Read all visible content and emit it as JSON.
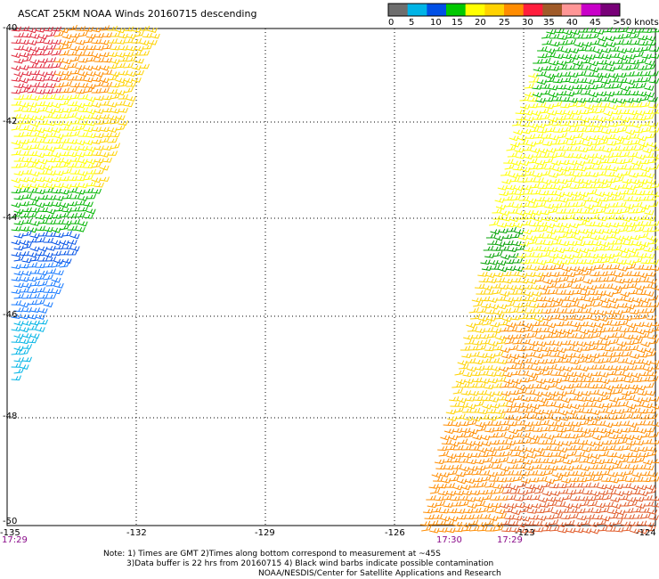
{
  "title": "ASCAT 25KM NOAA Winds 20160715 descending",
  "colorbar": {
    "ticks": [
      "0",
      "5",
      "10",
      "15",
      "20",
      "25",
      "30",
      "35",
      "40",
      "45",
      ">50 knots"
    ],
    "colors": [
      "#6e6e6e",
      "#00b4e6",
      "#0050e6",
      "#00c800",
      "#ffff00",
      "#ffd200",
      "#ff8c00",
      "#ff1e3c",
      "#a05a28",
      "#ff9696",
      "#c800c8",
      "#780078"
    ]
  },
  "axes": {
    "lon_labels": [
      "-135",
      "-132",
      "-129",
      "-126",
      "-123",
      "-124"
    ],
    "lat_labels": [
      "-40",
      "-42",
      "-44",
      "-46",
      "-48",
      "-50"
    ]
  },
  "times": [
    "17:29",
    "17:30",
    "17:29"
  ],
  "notes": [
    "Note: 1) Times are GMT 2)Times along bottom correspond to measurement at ~45S",
    "3)Data buffer is 22 hrs from 20160715 4) Black wind barbs indicate possible contamination",
    "NOAA/NESDIS/Center for Satellite Applications and Research"
  ]
}
